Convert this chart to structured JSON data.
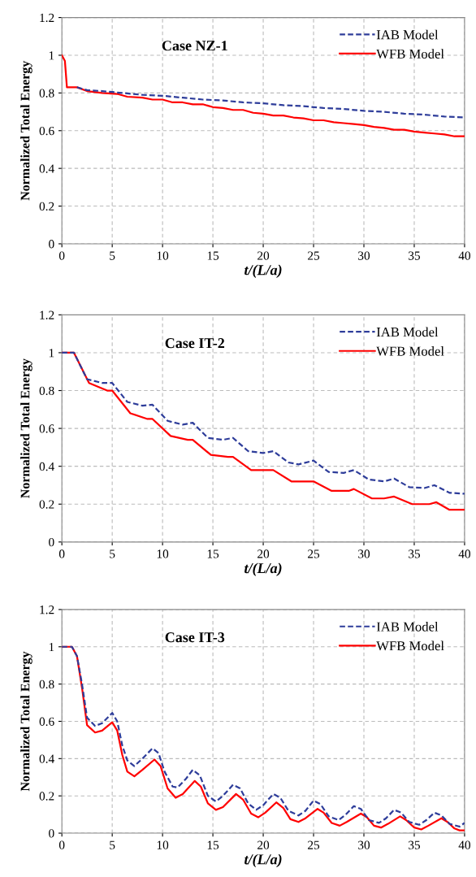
{
  "chart_data": [
    {
      "type": "line",
      "annotations": [
        "Case NZ-1"
      ],
      "xlabel": "t/(L/a)",
      "ylabel": "Normalized Total Energy",
      "xlim": [
        0,
        40
      ],
      "ylim": [
        0,
        1.2
      ],
      "xticks": [
        0,
        5,
        10,
        15,
        20,
        25,
        30,
        35,
        40
      ],
      "yticks": [
        0,
        0.2,
        0.4,
        0.6,
        0.8,
        1,
        1.2
      ],
      "grid": true,
      "legend": "top right",
      "series": [
        {
          "name": "IAB Model",
          "color": "#2e3d9a",
          "line_style": "dashed",
          "x": [
            1.5,
            2.5,
            4,
            5,
            6,
            7,
            8,
            10,
            12,
            14,
            16,
            18,
            20,
            22,
            24,
            26,
            28,
            30,
            32,
            34,
            36,
            38,
            40
          ],
          "values": [
            0.83,
            0.815,
            0.81,
            0.805,
            0.8,
            0.795,
            0.79,
            0.785,
            0.775,
            0.765,
            0.76,
            0.75,
            0.745,
            0.735,
            0.73,
            0.72,
            0.715,
            0.705,
            0.7,
            0.69,
            0.685,
            0.675,
            0.67
          ]
        },
        {
          "name": "WFB Model",
          "color": "#ff0000",
          "line_style": "solid",
          "x": [
            0,
            0.3,
            0.5,
            1.5,
            2.5,
            4,
            5.5,
            6.5,
            8,
            9,
            10,
            11,
            12,
            13,
            14,
            15,
            16,
            17,
            18,
            19,
            20,
            21,
            22,
            23,
            24,
            25,
            26,
            27,
            28,
            29,
            30,
            31,
            32,
            33,
            34,
            35,
            36,
            37,
            38,
            39,
            40
          ],
          "values": [
            1,
            0.97,
            0.83,
            0.83,
            0.81,
            0.8,
            0.795,
            0.78,
            0.775,
            0.765,
            0.765,
            0.75,
            0.75,
            0.74,
            0.74,
            0.725,
            0.72,
            0.71,
            0.71,
            0.695,
            0.69,
            0.68,
            0.68,
            0.67,
            0.665,
            0.655,
            0.655,
            0.645,
            0.64,
            0.635,
            0.63,
            0.62,
            0.615,
            0.605,
            0.605,
            0.595,
            0.59,
            0.585,
            0.58,
            0.57,
            0.57
          ]
        }
      ]
    },
    {
      "type": "line",
      "annotations": [
        "Case IT-2"
      ],
      "xlabel": "t/(L/a)",
      "ylabel": "Normalized Total Energy",
      "xlim": [
        0,
        40
      ],
      "ylim": [
        0,
        1.2
      ],
      "xticks": [
        0,
        5,
        10,
        15,
        20,
        25,
        30,
        35,
        40
      ],
      "yticks": [
        0,
        0.2,
        0.4,
        0.6,
        0.8,
        1,
        1.2
      ],
      "grid": true,
      "legend": "top right",
      "series": [
        {
          "name": "IAB Model",
          "color": "#2e3d9a",
          "line_style": "dashed",
          "x": [
            0,
            1.2,
            2.5,
            4,
            5,
            6.5,
            8,
            9,
            10.5,
            12,
            13,
            14.5,
            16,
            17,
            18.5,
            20,
            21,
            22.5,
            23.5,
            25,
            26.5,
            28,
            29,
            30.5,
            32,
            33,
            34.5,
            36,
            37,
            38.5,
            40
          ],
          "values": [
            1,
            1,
            0.86,
            0.84,
            0.84,
            0.74,
            0.72,
            0.725,
            0.64,
            0.62,
            0.63,
            0.55,
            0.54,
            0.55,
            0.48,
            0.47,
            0.48,
            0.42,
            0.41,
            0.43,
            0.37,
            0.365,
            0.38,
            0.33,
            0.32,
            0.335,
            0.29,
            0.285,
            0.3,
            0.26,
            0.255
          ]
        },
        {
          "name": "WFB Model",
          "color": "#ff0000",
          "line_style": "solid",
          "x": [
            0,
            1.2,
            2.7,
            4.5,
            5,
            6.8,
            8.5,
            9,
            10.8,
            12.5,
            13,
            14.8,
            16.5,
            17,
            18.8,
            20.5,
            21,
            22.8,
            24.5,
            25,
            26.8,
            28.5,
            29,
            30.8,
            32,
            33,
            34.8,
            36.5,
            37.2,
            38.5,
            40
          ],
          "values": [
            1,
            1,
            0.84,
            0.8,
            0.8,
            0.68,
            0.65,
            0.65,
            0.56,
            0.54,
            0.54,
            0.46,
            0.45,
            0.45,
            0.38,
            0.38,
            0.38,
            0.32,
            0.32,
            0.32,
            0.27,
            0.27,
            0.28,
            0.23,
            0.23,
            0.24,
            0.2,
            0.2,
            0.21,
            0.17,
            0.17
          ]
        }
      ]
    },
    {
      "type": "line",
      "annotations": [
        "Case IT-3"
      ],
      "xlabel": "t/(L/a)",
      "ylabel": "Normalized Total Energy",
      "xlim": [
        0,
        40
      ],
      "ylim": [
        0,
        1.2
      ],
      "xticks": [
        0,
        5,
        10,
        15,
        20,
        25,
        30,
        35,
        40
      ],
      "yticks": [
        0,
        0.2,
        0.4,
        0.6,
        0.8,
        1,
        1.2
      ],
      "grid": true,
      "legend": "top right",
      "series": [
        {
          "name": "IAB Model",
          "color": "#2e3d9a",
          "line_style": "dashed",
          "x": [
            0,
            1,
            1.5,
            2,
            2.5,
            3.3,
            4,
            5,
            5.5,
            6,
            6.5,
            7.2,
            8,
            9,
            9.6,
            10.2,
            11,
            11.5,
            12.3,
            13,
            13.7,
            14.5,
            15.3,
            16,
            17,
            17.7,
            18.5,
            19.3,
            20,
            21,
            21.7,
            22.5,
            23.5,
            24.2,
            25,
            25.7,
            26.5,
            27.5,
            28.2,
            29,
            29.7,
            30.5,
            31.5,
            32.2,
            33,
            33.7,
            34.5,
            35.5,
            36.2,
            37,
            37.7,
            38.5,
            39.5,
            40
          ],
          "values": [
            1,
            1,
            0.95,
            0.8,
            0.62,
            0.575,
            0.59,
            0.645,
            0.6,
            0.47,
            0.39,
            0.36,
            0.4,
            0.455,
            0.43,
            0.33,
            0.25,
            0.245,
            0.29,
            0.34,
            0.31,
            0.2,
            0.17,
            0.2,
            0.26,
            0.24,
            0.16,
            0.125,
            0.15,
            0.21,
            0.19,
            0.12,
            0.095,
            0.12,
            0.175,
            0.155,
            0.09,
            0.07,
            0.1,
            0.145,
            0.13,
            0.07,
            0.055,
            0.08,
            0.125,
            0.11,
            0.06,
            0.045,
            0.07,
            0.11,
            0.095,
            0.05,
            0.035,
            0.055
          ]
        },
        {
          "name": "WFB Model",
          "color": "#ff0000",
          "line_style": "solid",
          "x": [
            0,
            1,
            1.5,
            2,
            2.5,
            3.3,
            4,
            5,
            5.5,
            6,
            6.5,
            7.2,
            8,
            9.2,
            9.8,
            10.5,
            11.3,
            12,
            13.2,
            13.8,
            14.5,
            15.3,
            16,
            17.3,
            18,
            18.8,
            19.5,
            20.2,
            21.3,
            22,
            22.7,
            23.5,
            24.2,
            25.4,
            26,
            26.8,
            27.6,
            28.3,
            29.7,
            30.3,
            31,
            31.7,
            32.4,
            33.6,
            34.2,
            35,
            35.7,
            36.4,
            37.7,
            38.3,
            39,
            39.5,
            40
          ],
          "values": [
            1,
            1,
            0.95,
            0.78,
            0.58,
            0.54,
            0.55,
            0.595,
            0.55,
            0.42,
            0.33,
            0.305,
            0.34,
            0.395,
            0.36,
            0.24,
            0.19,
            0.21,
            0.28,
            0.25,
            0.16,
            0.125,
            0.14,
            0.21,
            0.18,
            0.105,
            0.085,
            0.11,
            0.165,
            0.135,
            0.075,
            0.06,
            0.08,
            0.13,
            0.11,
            0.055,
            0.04,
            0.06,
            0.105,
            0.085,
            0.04,
            0.03,
            0.05,
            0.09,
            0.07,
            0.03,
            0.02,
            0.04,
            0.08,
            0.06,
            0.025,
            0.015,
            0.015
          ]
        }
      ]
    }
  ]
}
